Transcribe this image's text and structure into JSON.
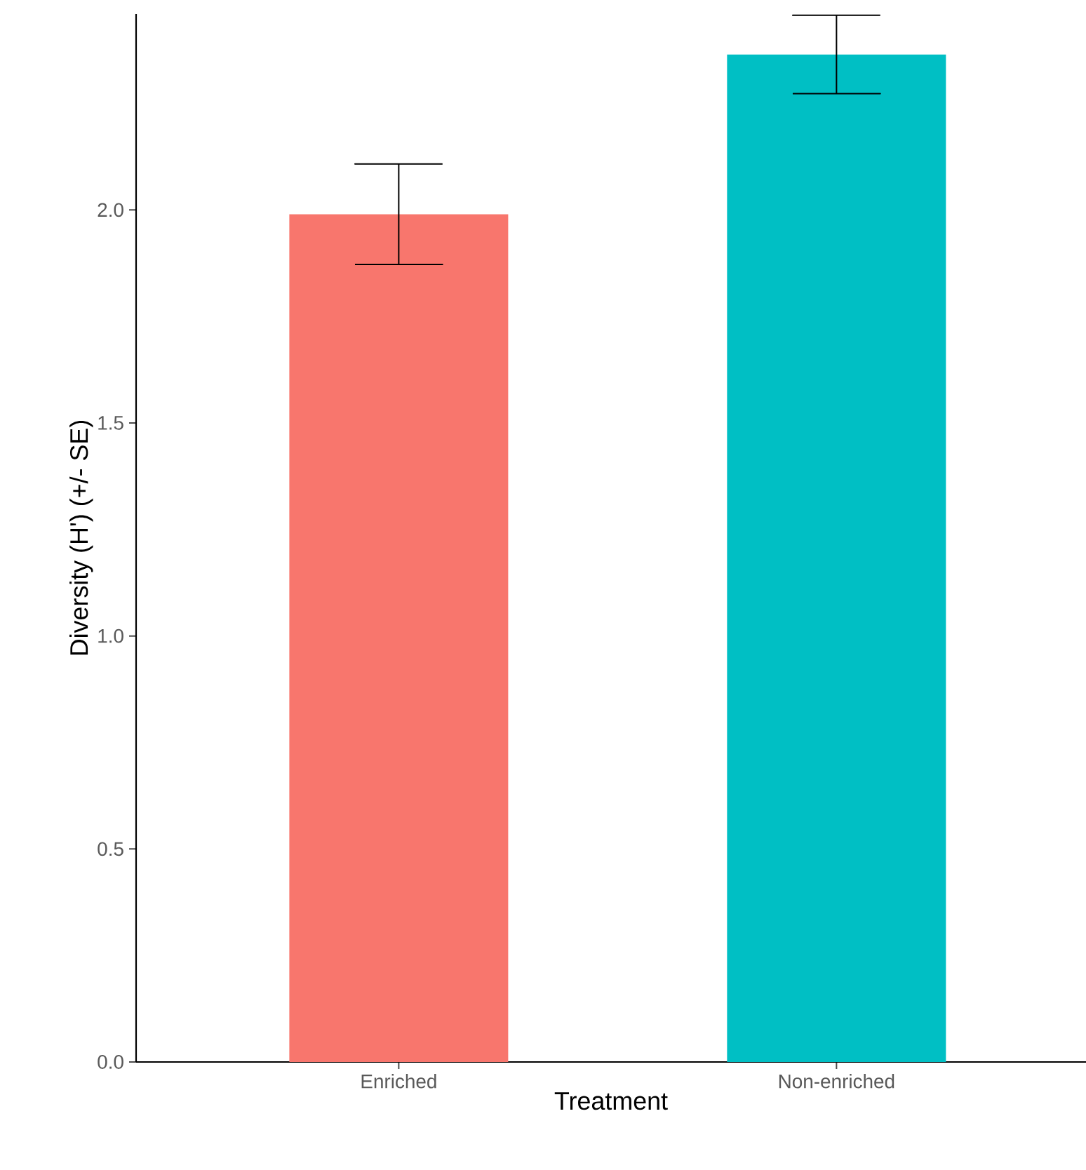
{
  "chart_data": {
    "type": "bar",
    "xlabel": "Treatment",
    "ylabel": "Diversity (H') (+/- SE)",
    "categories": [
      "Enriched",
      "Non-enriched"
    ],
    "values": [
      1.99,
      2.365
    ],
    "colors": [
      "#f8766d",
      "#00bfc4"
    ],
    "errors": [
      0.118,
      0.092
    ],
    "ylim": [
      0,
      2.46
    ],
    "yticks": [
      {
        "value": 0,
        "label": "0.0"
      },
      {
        "value": 0.5,
        "label": "0.5"
      },
      {
        "value": 1,
        "label": "1.0"
      },
      {
        "value": 1.5,
        "label": "1.5"
      },
      {
        "value": 2,
        "label": "2.0"
      }
    ],
    "grid": false
  }
}
